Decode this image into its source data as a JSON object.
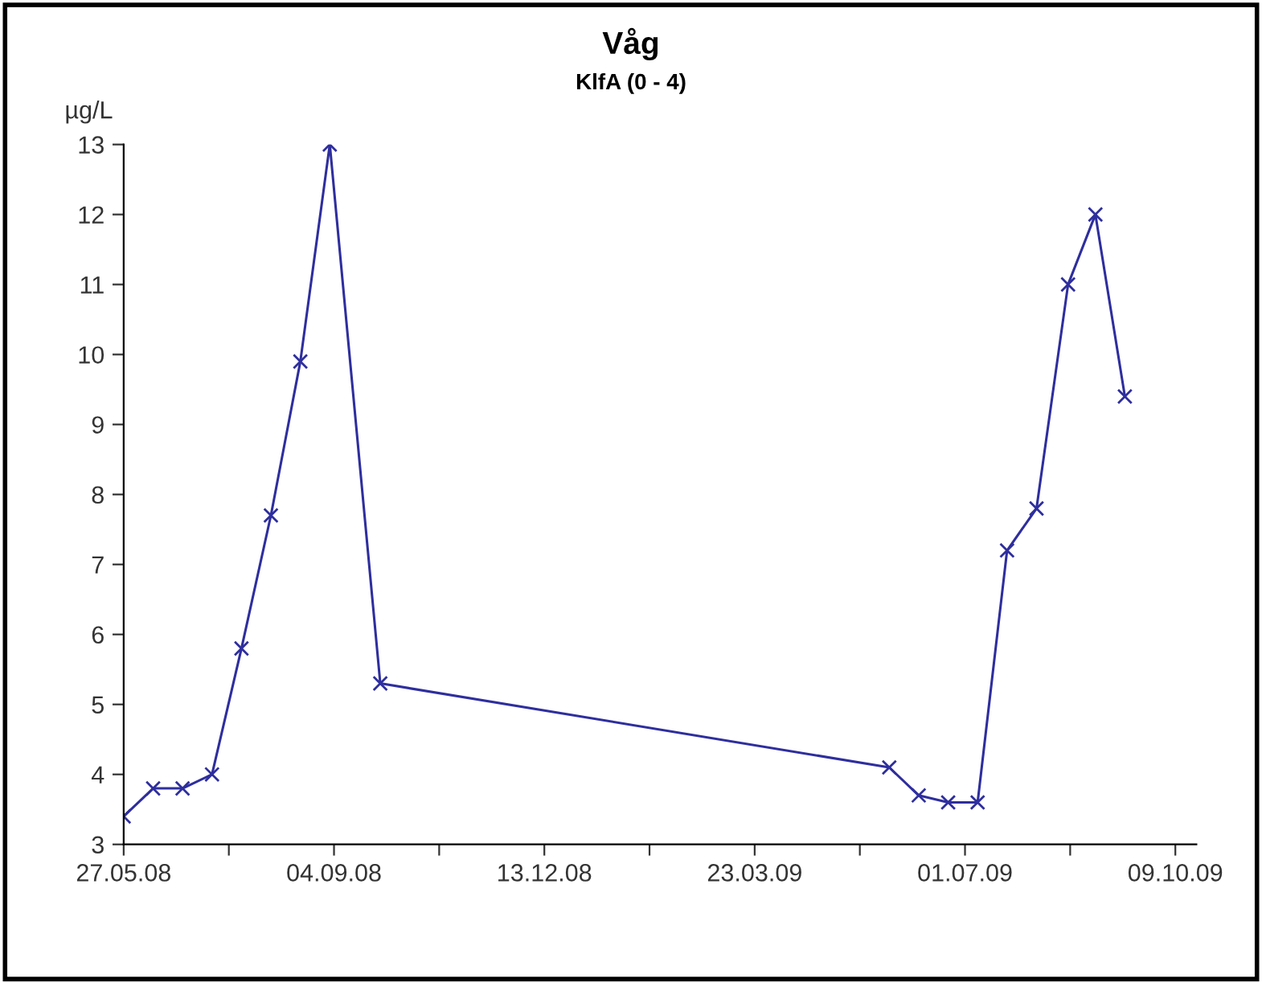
{
  "chart_data": {
    "type": "line",
    "title": "Våg",
    "subtitle": "KlfA (0 - 4)",
    "ylabel": "µg/L",
    "x": [
      "2008-05-27",
      "2008-06-10",
      "2008-06-24",
      "2008-07-08",
      "2008-07-22",
      "2008-08-05",
      "2008-08-19",
      "2008-09-02",
      "2008-09-26",
      "2009-05-26",
      "2009-06-09",
      "2009-06-23",
      "2009-07-07",
      "2009-07-21",
      "2009-08-04",
      "2009-08-19",
      "2009-09-01",
      "2009-09-15"
    ],
    "series": [
      {
        "color": "#2e2e9e",
        "values": [
          3.4,
          3.8,
          3.8,
          4.0,
          5.8,
          7.7,
          9.9,
          13.0,
          5.3,
          4.1,
          3.7,
          3.6,
          3.6,
          7.2,
          7.8,
          11.0,
          12.0,
          9.4
        ]
      }
    ],
    "xlim": [
      "2008-05-27",
      "2009-10-19"
    ],
    "xticks": [
      {
        "value": "2008-05-27",
        "label": "27.05.08"
      },
      {
        "value": "2008-07-16",
        "label": null
      },
      {
        "value": "2008-09-04",
        "label": "04.09.08"
      },
      {
        "value": "2008-10-24",
        "label": null
      },
      {
        "value": "2008-12-13",
        "label": "13.12.08"
      },
      {
        "value": "2009-02-01",
        "label": null
      },
      {
        "value": "2009-03-23",
        "label": "23.03.09"
      },
      {
        "value": "2009-05-12",
        "label": null
      },
      {
        "value": "2009-07-01",
        "label": "01.07.09"
      },
      {
        "value": "2009-08-20",
        "label": null
      },
      {
        "value": "2009-10-09",
        "label": "09.10.09"
      }
    ],
    "ylim": [
      3,
      13
    ],
    "yticks": [
      3,
      4,
      5,
      6,
      7,
      8,
      9,
      10,
      11,
      12,
      13
    ],
    "grid": false,
    "legend": false,
    "marker": "cross",
    "line_style": "solid"
  }
}
